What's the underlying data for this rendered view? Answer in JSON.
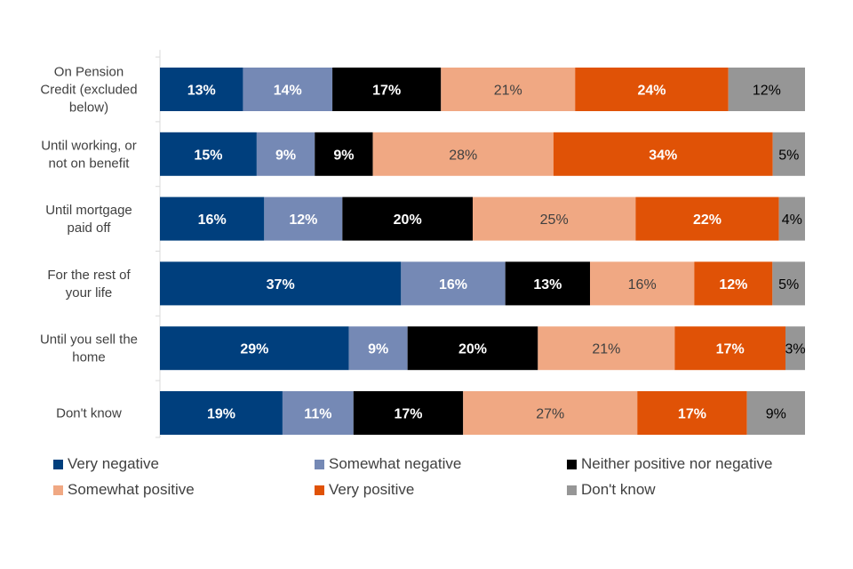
{
  "chart_data": {
    "type": "bar",
    "orientation": "horizontal",
    "stacked": true,
    "percent": true,
    "categories": [
      [
        "On Pension",
        "Credit (excluded",
        "below)"
      ],
      [
        "Until working, or",
        "not on benefit"
      ],
      [
        "Until mortgage",
        "paid off"
      ],
      [
        "For the rest of",
        "your life"
      ],
      [
        "Until you sell the",
        "home"
      ],
      [
        "Don't know"
      ]
    ],
    "series": [
      {
        "name": "Very negative",
        "color": "#003f7d",
        "label_color": "#ffffff",
        "values": [
          13,
          15,
          16,
          37,
          29,
          19
        ]
      },
      {
        "name": "Somewhat negative",
        "color": "#7589b5",
        "label_color": "#ffffff",
        "values": [
          14,
          9,
          12,
          16,
          9,
          11
        ]
      },
      {
        "name": "Neither positive nor negative",
        "color": "#000000",
        "label_color": "#ffffff",
        "values": [
          17,
          9,
          20,
          13,
          20,
          17
        ]
      },
      {
        "name": "Somewhat positive",
        "color": "#f0a883",
        "label_color": "#404040",
        "values": [
          21,
          28,
          25,
          16,
          21,
          27
        ]
      },
      {
        "name": "Very positive",
        "color": "#e05206",
        "label_color": "#ffffff",
        "values": [
          24,
          34,
          22,
          12,
          17,
          17
        ]
      },
      {
        "name": "Don't know",
        "color": "#969696",
        "label_color": "#000000",
        "values": [
          12,
          5,
          4,
          5,
          3,
          9
        ]
      }
    ],
    "xlim": [
      0,
      100
    ],
    "grid": false,
    "legend_position": "bottom"
  }
}
